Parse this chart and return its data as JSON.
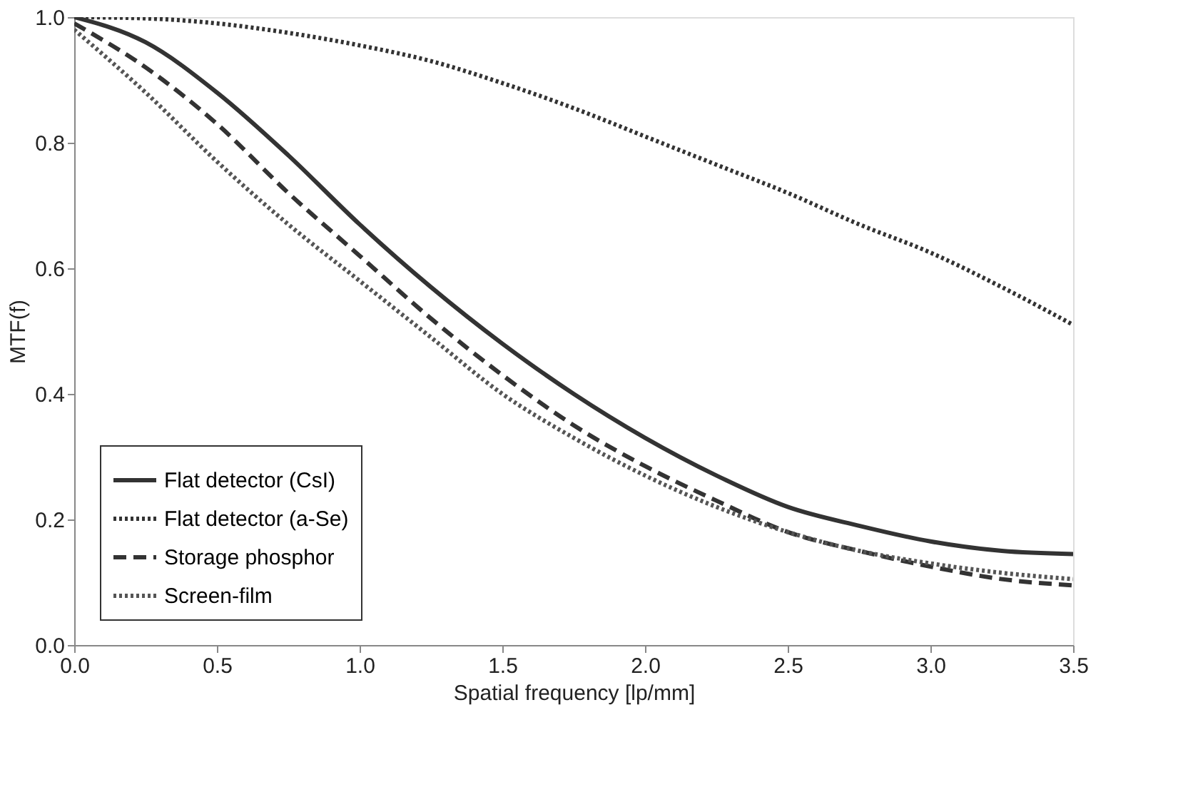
{
  "chart_data": {
    "type": "line",
    "xlabel": "Spatial frequency [lp/mm]",
    "ylabel": "MTF(f)",
    "x": [
      0,
      0.25,
      0.5,
      0.75,
      1.0,
      1.25,
      1.5,
      1.75,
      2.0,
      2.25,
      2.5,
      2.75,
      3.0,
      3.25,
      3.5
    ],
    "series": [
      {
        "name": "Flat detector (CsI)",
        "color": "#333333",
        "line_style": "solid",
        "values": [
          1.0,
          0.96,
          0.88,
          0.78,
          0.67,
          0.57,
          0.48,
          0.4,
          0.33,
          0.27,
          0.22,
          0.19,
          0.165,
          0.15,
          0.145
        ]
      },
      {
        "name": "Flat detector (a-Se)",
        "color": "#333333",
        "line_style": "dotted",
        "values": [
          1.0,
          0.998,
          0.99,
          0.975,
          0.955,
          0.93,
          0.895,
          0.855,
          0.81,
          0.765,
          0.72,
          0.67,
          0.625,
          0.57,
          0.51
        ]
      },
      {
        "name": "Storage phosphor",
        "color": "#333333",
        "line_style": "dashed",
        "values": [
          0.99,
          0.92,
          0.83,
          0.72,
          0.62,
          0.52,
          0.43,
          0.35,
          0.285,
          0.23,
          0.18,
          0.15,
          0.125,
          0.105,
          0.095
        ]
      },
      {
        "name": "Screen-film",
        "color": "#555555",
        "line_style": "dotted",
        "values": [
          0.98,
          0.88,
          0.77,
          0.67,
          0.58,
          0.49,
          0.4,
          0.33,
          0.27,
          0.22,
          0.18,
          0.15,
          0.13,
          0.115,
          0.105
        ]
      }
    ],
    "xlim": [
      0,
      3.5
    ],
    "xticks": [
      {
        "value": 0,
        "label": "0.0"
      },
      0.5,
      {
        "value": 1,
        "label": "1.0"
      },
      1.5,
      {
        "value": 2,
        "label": "2.0"
      },
      2.5,
      {
        "value": 3,
        "label": "3.0"
      },
      3.5
    ],
    "ylim": [
      0,
      1
    ],
    "yticks": [
      {
        "value": 0,
        "label": "0.0"
      },
      0.2,
      0.4,
      0.6,
      0.8,
      {
        "value": 1,
        "label": "1.0"
      }
    ],
    "grid": false,
    "legend": "bottom left"
  }
}
